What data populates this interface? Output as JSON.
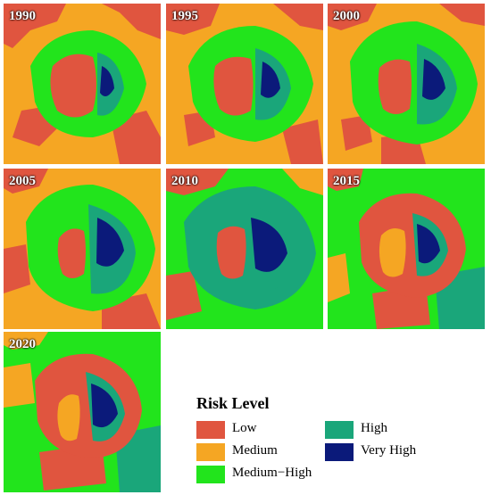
{
  "panels": [
    {
      "year": "1990"
    },
    {
      "year": "1995"
    },
    {
      "year": "2000"
    },
    {
      "year": "2005"
    },
    {
      "year": "2010"
    },
    {
      "year": "2015"
    },
    {
      "year": "2020"
    }
  ],
  "legend": {
    "title": "Risk Level",
    "items": [
      {
        "label": "Low",
        "color": "#E0553F"
      },
      {
        "label": "Medium",
        "color": "#F5A623"
      },
      {
        "label": "Medium−High",
        "color": "#22E41C"
      },
      {
        "label": "High",
        "color": "#1AA67A"
      },
      {
        "label": "Very High",
        "color": "#0B1A7A"
      }
    ]
  }
}
